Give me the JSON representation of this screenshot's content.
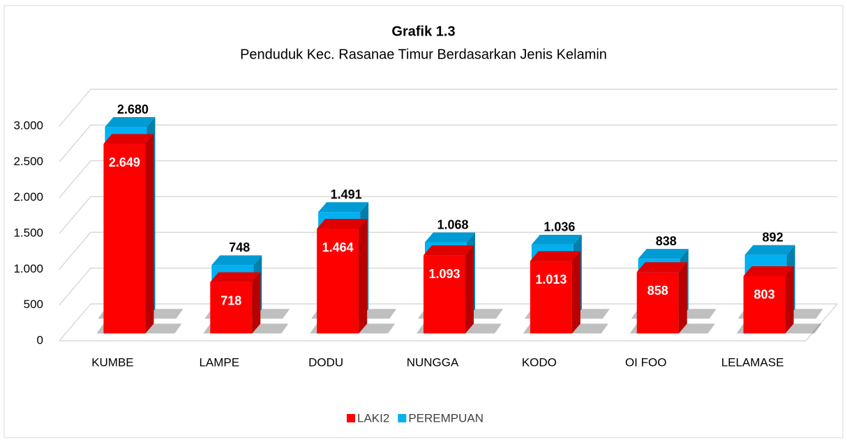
{
  "chart_data": {
    "type": "bar3d",
    "title": "Grafik 1.3",
    "subtitle": "Penduduk Kec. Rasanae Timur Berdasarkan Jenis Kelamin",
    "categories": [
      "KUMBE",
      "LAMPE",
      "DODU",
      "NUNGGA",
      "KODO",
      "OI FOO",
      "LELAMASE"
    ],
    "series": [
      {
        "name": "LAKI2",
        "color": "#ff0000",
        "values": [
          2649,
          718,
          1464,
          1093,
          1013,
          858,
          803
        ],
        "value_labels": [
          "2.649",
          "718",
          "1.464",
          "1.093",
          "1.013",
          "858",
          "803"
        ]
      },
      {
        "name": "PEREMPUAN",
        "color": "#00b0f0",
        "values": [
          2680,
          748,
          1491,
          1068,
          1036,
          838,
          892
        ],
        "value_labels": [
          "2.680",
          "748",
          "1.491",
          "1.068",
          "1.036",
          "838",
          "892"
        ]
      }
    ],
    "ylim": [
      0,
      3000
    ],
    "yticks": [
      0,
      500,
      {
        "value": 1000,
        "label": "1.000"
      },
      {
        "value": 1500,
        "label": "1.500"
      },
      {
        "value": 2000,
        "label": "2.000"
      },
      {
        "value": 2500,
        "label": "2.500"
      },
      {
        "value": 3000,
        "label": "3.000"
      }
    ],
    "grid": true,
    "legend": "bottom"
  }
}
